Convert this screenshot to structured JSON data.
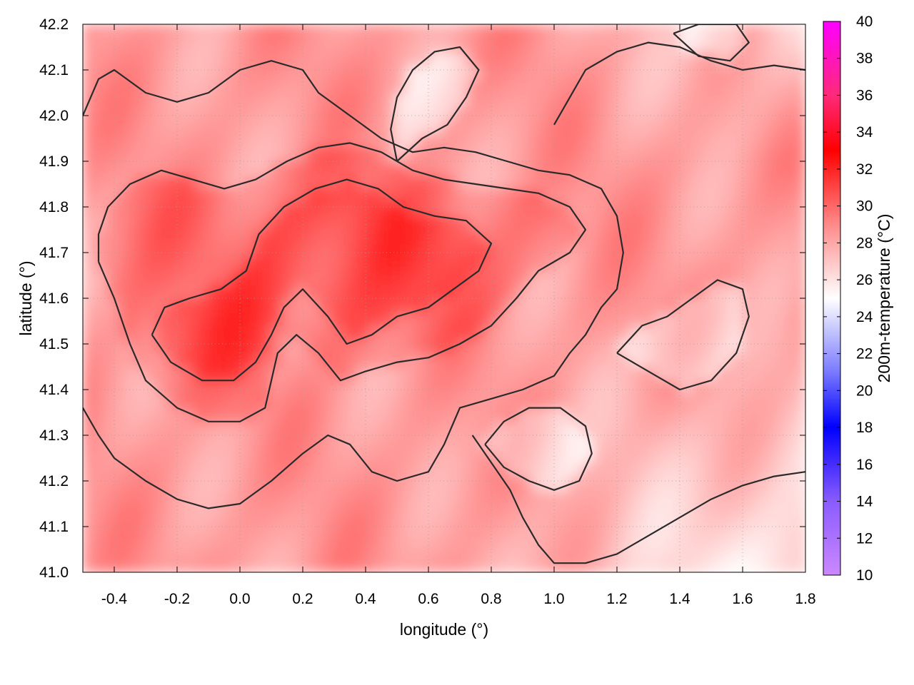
{
  "chart_data": {
    "type": "heatmap",
    "xlabel": "longitude (°)",
    "ylabel": "latitude (°)",
    "colorbar_label": "200m-temperature (°C)",
    "xlim": [
      -0.5,
      1.8
    ],
    "ylim": [
      41.0,
      42.2
    ],
    "x_ticks": [
      "-0.4",
      "-0.2",
      "0.0",
      "0.2",
      "0.4",
      "0.6",
      "0.8",
      "1.0",
      "1.2",
      "1.4",
      "1.6",
      "1.8"
    ],
    "x_tick_values": [
      -0.4,
      -0.2,
      0.0,
      0.2,
      0.4,
      0.6,
      0.8,
      1.0,
      1.2,
      1.4,
      1.6,
      1.8
    ],
    "y_ticks": [
      "41.0",
      "41.1",
      "41.2",
      "41.3",
      "41.4",
      "41.5",
      "41.6",
      "41.7",
      "41.8",
      "41.9",
      "42.0",
      "42.1",
      "42.2"
    ],
    "y_tick_values": [
      41.0,
      41.1,
      41.2,
      41.3,
      41.4,
      41.5,
      41.6,
      41.7,
      41.8,
      41.9,
      42.0,
      42.1,
      42.2
    ],
    "colorbar_range": [
      10,
      40
    ],
    "colorbar_ticks": [
      "10",
      "12",
      "14",
      "16",
      "18",
      "20",
      "22",
      "24",
      "26",
      "28",
      "30",
      "32",
      "34",
      "36",
      "38",
      "40"
    ],
    "colorbar_tick_values": [
      10,
      12,
      14,
      16,
      18,
      20,
      22,
      24,
      26,
      28,
      30,
      32,
      34,
      36,
      38,
      40
    ],
    "colormap": [
      {
        "value": 10,
        "color": "#cc88ff"
      },
      {
        "value": 14,
        "color": "#8a5cff"
      },
      {
        "value": 18,
        "color": "#0000ff"
      },
      {
        "value": 21,
        "color": "#7a7aff"
      },
      {
        "value": 25,
        "color": "#ffffff"
      },
      {
        "value": 29,
        "color": "#ff8a8a"
      },
      {
        "value": 33,
        "color": "#ff0000"
      },
      {
        "value": 36,
        "color": "#ff2a7a"
      },
      {
        "value": 40,
        "color": "#ff00ff"
      }
    ],
    "grid": true,
    "contour_color": "#2a2a2a",
    "contour_levels": [
      {
        "level": 27,
        "points": [
          [
            -0.5,
            41.36
          ],
          [
            -0.45,
            41.3
          ],
          [
            -0.4,
            41.25
          ],
          [
            -0.3,
            41.2
          ],
          [
            -0.2,
            41.16
          ],
          [
            -0.1,
            41.14
          ],
          [
            0.0,
            41.15
          ],
          [
            0.1,
            41.2
          ],
          [
            0.2,
            41.26
          ],
          [
            0.28,
            41.3
          ],
          [
            0.35,
            41.28
          ],
          [
            0.42,
            41.22
          ],
          [
            0.5,
            41.2
          ],
          [
            0.6,
            41.22
          ],
          [
            0.65,
            41.28
          ],
          [
            0.7,
            41.36
          ],
          [
            0.8,
            41.38
          ],
          [
            0.9,
            41.4
          ],
          [
            1.0,
            41.43
          ],
          [
            1.05,
            41.48
          ],
          [
            1.1,
            41.52
          ],
          [
            1.15,
            41.58
          ],
          [
            1.2,
            41.62
          ],
          [
            1.22,
            41.7
          ],
          [
            1.2,
            41.78
          ],
          [
            1.15,
            41.84
          ],
          [
            1.05,
            41.87
          ],
          [
            0.95,
            41.88
          ],
          [
            0.85,
            41.9
          ],
          [
            0.75,
            41.92
          ],
          [
            0.65,
            41.93
          ],
          [
            0.55,
            41.92
          ],
          [
            0.45,
            41.95
          ],
          [
            0.35,
            42.0
          ],
          [
            0.25,
            42.05
          ],
          [
            0.2,
            42.1
          ],
          [
            0.1,
            42.12
          ],
          [
            0.0,
            42.1
          ],
          [
            -0.1,
            42.05
          ],
          [
            -0.2,
            42.03
          ],
          [
            -0.3,
            42.05
          ],
          [
            -0.4,
            42.1
          ],
          [
            -0.45,
            42.08
          ],
          [
            -0.5,
            42.0
          ]
        ]
      },
      {
        "level": 29,
        "points": [
          [
            -0.45,
            41.68
          ],
          [
            -0.4,
            41.6
          ],
          [
            -0.35,
            41.5
          ],
          [
            -0.3,
            41.42
          ],
          [
            -0.2,
            41.36
          ],
          [
            -0.1,
            41.33
          ],
          [
            0.0,
            41.33
          ],
          [
            0.08,
            41.36
          ],
          [
            0.1,
            41.42
          ],
          [
            0.12,
            41.48
          ],
          [
            0.18,
            41.52
          ],
          [
            0.25,
            41.48
          ],
          [
            0.32,
            41.42
          ],
          [
            0.4,
            41.44
          ],
          [
            0.5,
            41.46
          ],
          [
            0.6,
            41.47
          ],
          [
            0.7,
            41.5
          ],
          [
            0.8,
            41.54
          ],
          [
            0.88,
            41.6
          ],
          [
            0.95,
            41.66
          ],
          [
            1.05,
            41.7
          ],
          [
            1.1,
            41.75
          ],
          [
            1.05,
            41.8
          ],
          [
            0.95,
            41.83
          ],
          [
            0.85,
            41.84
          ],
          [
            0.75,
            41.85
          ],
          [
            0.65,
            41.86
          ],
          [
            0.55,
            41.88
          ],
          [
            0.45,
            41.92
          ],
          [
            0.35,
            41.94
          ],
          [
            0.25,
            41.93
          ],
          [
            0.15,
            41.9
          ],
          [
            0.05,
            41.86
          ],
          [
            -0.05,
            41.84
          ],
          [
            -0.15,
            41.86
          ],
          [
            -0.25,
            41.88
          ],
          [
            -0.35,
            41.85
          ],
          [
            -0.42,
            41.8
          ],
          [
            -0.45,
            41.74
          ],
          [
            -0.45,
            41.68
          ]
        ]
      },
      {
        "level": 31,
        "points": [
          [
            -0.28,
            41.52
          ],
          [
            -0.22,
            41.46
          ],
          [
            -0.12,
            41.42
          ],
          [
            -0.02,
            41.42
          ],
          [
            0.05,
            41.46
          ],
          [
            0.1,
            41.52
          ],
          [
            0.14,
            41.58
          ],
          [
            0.2,
            41.62
          ],
          [
            0.28,
            41.56
          ],
          [
            0.34,
            41.5
          ],
          [
            0.42,
            41.52
          ],
          [
            0.5,
            41.56
          ],
          [
            0.6,
            41.58
          ],
          [
            0.68,
            41.62
          ],
          [
            0.76,
            41.66
          ],
          [
            0.8,
            41.72
          ],
          [
            0.72,
            41.77
          ],
          [
            0.62,
            41.78
          ],
          [
            0.52,
            41.8
          ],
          [
            0.44,
            41.84
          ],
          [
            0.34,
            41.86
          ],
          [
            0.24,
            41.84
          ],
          [
            0.14,
            41.8
          ],
          [
            0.06,
            41.74
          ],
          [
            0.02,
            41.66
          ],
          [
            -0.06,
            41.62
          ],
          [
            -0.16,
            41.6
          ],
          [
            -0.24,
            41.58
          ],
          [
            -0.28,
            41.52
          ]
        ]
      },
      {
        "level": 23,
        "points": [
          [
            0.74,
            41.3
          ],
          [
            0.8,
            41.24
          ],
          [
            0.86,
            41.18
          ],
          [
            0.9,
            41.12
          ],
          [
            0.95,
            41.06
          ],
          [
            1.0,
            41.02
          ],
          [
            1.1,
            41.02
          ],
          [
            1.2,
            41.04
          ],
          [
            1.3,
            41.08
          ],
          [
            1.4,
            41.12
          ],
          [
            1.5,
            41.16
          ],
          [
            1.6,
            41.19
          ],
          [
            1.7,
            41.21
          ],
          [
            1.8,
            41.22
          ]
        ]
      },
      {
        "level": 22,
        "points": [
          [
            0.78,
            41.28
          ],
          [
            0.84,
            41.33
          ],
          [
            0.92,
            41.36
          ],
          [
            1.02,
            41.36
          ],
          [
            1.1,
            41.32
          ],
          [
            1.12,
            41.26
          ],
          [
            1.08,
            41.2
          ],
          [
            1.0,
            41.18
          ],
          [
            0.92,
            41.2
          ],
          [
            0.84,
            41.23
          ],
          [
            0.78,
            41.28
          ]
        ]
      },
      {
        "level": 23,
        "points": [
          [
            1.0,
            41.98
          ],
          [
            1.05,
            42.04
          ],
          [
            1.1,
            42.1
          ],
          [
            1.2,
            42.14
          ],
          [
            1.3,
            42.16
          ],
          [
            1.4,
            42.15
          ],
          [
            1.5,
            42.12
          ],
          [
            1.6,
            42.1
          ],
          [
            1.7,
            42.11
          ],
          [
            1.8,
            42.1
          ]
        ]
      },
      {
        "level": 21,
        "points": [
          [
            1.38,
            42.18
          ],
          [
            1.46,
            42.13
          ],
          [
            1.56,
            42.12
          ],
          [
            1.62,
            42.16
          ],
          [
            1.58,
            42.2
          ],
          [
            1.46,
            42.2
          ],
          [
            1.38,
            42.18
          ]
        ]
      },
      {
        "level": 24,
        "points": [
          [
            1.2,
            41.48
          ],
          [
            1.3,
            41.44
          ],
          [
            1.4,
            41.4
          ],
          [
            1.5,
            41.42
          ],
          [
            1.58,
            41.48
          ],
          [
            1.62,
            41.56
          ],
          [
            1.6,
            41.62
          ],
          [
            1.52,
            41.64
          ],
          [
            1.44,
            41.6
          ],
          [
            1.36,
            41.56
          ],
          [
            1.28,
            41.54
          ],
          [
            1.2,
            41.48
          ]
        ]
      },
      {
        "level": 24,
        "points": [
          [
            0.5,
            41.9
          ],
          [
            0.58,
            41.95
          ],
          [
            0.66,
            41.98
          ],
          [
            0.72,
            42.04
          ],
          [
            0.76,
            42.1
          ],
          [
            0.7,
            42.15
          ],
          [
            0.62,
            42.14
          ],
          [
            0.55,
            42.1
          ],
          [
            0.5,
            42.04
          ],
          [
            0.48,
            41.97
          ],
          [
            0.5,
            41.9
          ]
        ]
      }
    ]
  }
}
